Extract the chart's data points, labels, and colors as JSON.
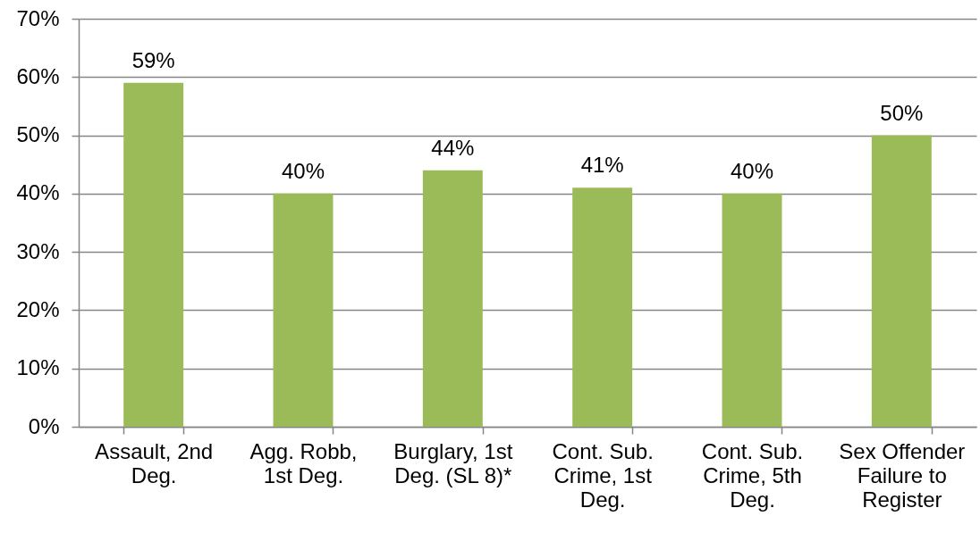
{
  "chart_data": {
    "type": "bar",
    "categories": [
      "Assault, 2nd Deg.",
      "Agg. Robb, 1st Deg.",
      "Burglary, 1st Deg. (SL 8)*",
      "Cont. Sub. Crime, 1st Deg.",
      "Cont. Sub. Crime, 5th Deg.",
      "Sex Offender Failure to Register"
    ],
    "values": [
      59,
      40,
      44,
      41,
      40,
      50
    ],
    "value_labels": [
      "59%",
      "40%",
      "44%",
      "41%",
      "40%",
      "50%"
    ],
    "color": "#9bbb59",
    "ylim": [
      0,
      70
    ],
    "yticks": [
      {
        "value": 0,
        "label": "0%"
      },
      {
        "value": 10,
        "label": "10%"
      },
      {
        "value": 20,
        "label": "20%"
      },
      {
        "value": 30,
        "label": "30%"
      },
      {
        "value": 40,
        "label": "40%"
      },
      {
        "value": 50,
        "label": "50%"
      },
      {
        "value": 60,
        "label": "60%"
      },
      {
        "value": 70,
        "label": "70%"
      }
    ],
    "grid": "y"
  }
}
